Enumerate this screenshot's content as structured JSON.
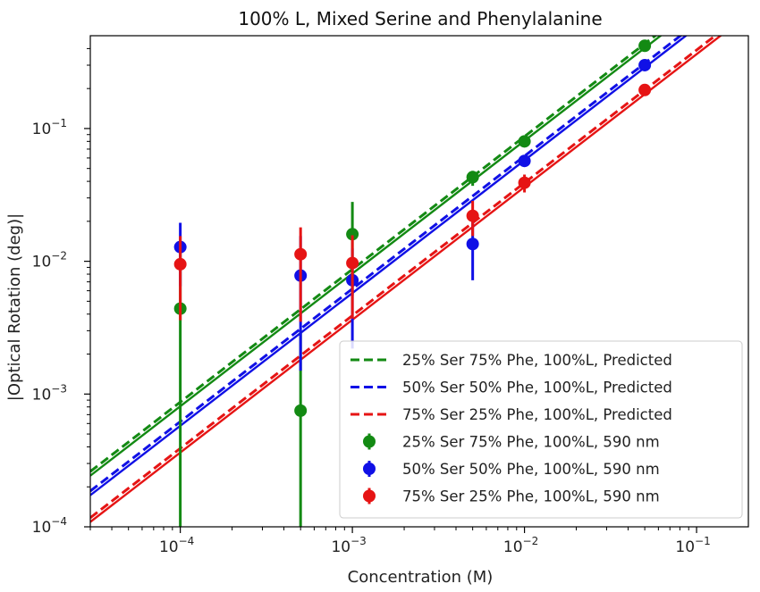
{
  "chart_data": {
    "type": "scatter",
    "title": "100% L, Mixed Serine and Phenylalanine",
    "xlabel": "Concentration (M)",
    "ylabel": "|Optical Rotation (deg)|",
    "x_scale": "log",
    "y_scale": "log",
    "xlim": [
      3e-05,
      0.2
    ],
    "ylim": [
      0.0001,
      0.5
    ],
    "grid": false,
    "legend_position": "lower-right",
    "x_ticks": [
      {
        "value": 0.0001,
        "base": "10",
        "exp": "−4"
      },
      {
        "value": 0.001,
        "base": "10",
        "exp": "−3"
      },
      {
        "value": 0.01,
        "base": "10",
        "exp": "−2"
      },
      {
        "value": 0.1,
        "base": "10",
        "exp": "−1"
      }
    ],
    "y_ticks": [
      {
        "value": 0.0001,
        "base": "10",
        "exp": "−4"
      },
      {
        "value": 0.001,
        "base": "10",
        "exp": "−3"
      },
      {
        "value": 0.01,
        "base": "10",
        "exp": "−2"
      },
      {
        "value": 0.1,
        "base": "10",
        "exp": "−1"
      }
    ],
    "predicted_series": [
      {
        "name": "25% Ser 75% Phe, 100%L, Predicted",
        "color": "#138a13",
        "slope": 8.7
      },
      {
        "name": "50% Ser 50% Phe, 100%L, Predicted",
        "color": "#1010e6",
        "slope": 6.2
      },
      {
        "name": "75% Ser 25% Phe, 100%L, Predicted",
        "color": "#e61414",
        "slope": 3.9
      }
    ],
    "measured_series": [
      {
        "name": "25% Ser 75% Phe, 100%L, 590 nm",
        "color": "#138a13",
        "points": [
          {
            "x": 0.0001,
            "y": 0.0044,
            "ylo": 0.0001,
            "yhi": 0.0125
          },
          {
            "x": 0.0005,
            "y": 0.00075,
            "ylo": 0.0001,
            "yhi": 0.003
          },
          {
            "x": 0.001,
            "y": 0.016,
            "ylo": 0.0055,
            "yhi": 0.028
          },
          {
            "x": 0.005,
            "y": 0.043,
            "ylo": 0.037,
            "yhi": 0.048
          },
          {
            "x": 0.01,
            "y": 0.08,
            "ylo": 0.074,
            "yhi": 0.086
          },
          {
            "x": 0.05,
            "y": 0.42,
            "ylo": 0.4,
            "yhi": 0.44
          }
        ]
      },
      {
        "name": "50% Ser 50% Phe, 100%L, 590 nm",
        "color": "#1010e6",
        "points": [
          {
            "x": 0.0001,
            "y": 0.0128,
            "ylo": 0.0065,
            "yhi": 0.0195
          },
          {
            "x": 0.0005,
            "y": 0.0078,
            "ylo": 0.0015,
            "yhi": 0.0155
          },
          {
            "x": 0.001,
            "y": 0.0072,
            "ylo": 0.0022,
            "yhi": 0.0125
          },
          {
            "x": 0.005,
            "y": 0.0135,
            "ylo": 0.0072,
            "yhi": 0.021
          },
          {
            "x": 0.01,
            "y": 0.057,
            "ylo": 0.052,
            "yhi": 0.061
          },
          {
            "x": 0.05,
            "y": 0.3,
            "ylo": 0.285,
            "yhi": 0.315
          }
        ]
      },
      {
        "name": "75% Ser 25% Phe, 100%L, 590 nm",
        "color": "#e61414",
        "points": [
          {
            "x": 0.0001,
            "y": 0.0095,
            "ylo": 0.0036,
            "yhi": 0.0155
          },
          {
            "x": 0.0005,
            "y": 0.0113,
            "ylo": 0.0035,
            "yhi": 0.018
          },
          {
            "x": 0.001,
            "y": 0.0097,
            "ylo": 0.0037,
            "yhi": 0.0157
          },
          {
            "x": 0.005,
            "y": 0.022,
            "ylo": 0.0155,
            "yhi": 0.0285
          },
          {
            "x": 0.01,
            "y": 0.039,
            "ylo": 0.033,
            "yhi": 0.045
          },
          {
            "x": 0.05,
            "y": 0.195,
            "ylo": 0.185,
            "yhi": 0.205
          }
        ]
      }
    ]
  }
}
